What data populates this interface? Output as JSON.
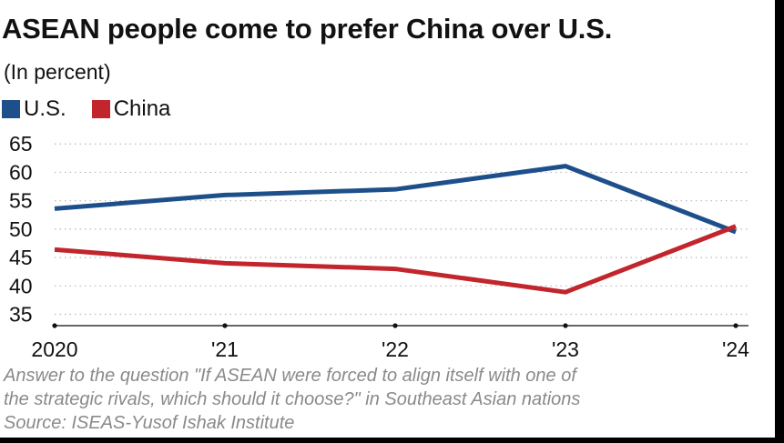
{
  "title": "ASEAN people come to prefer China over U.S.",
  "subtitle": "(In percent)",
  "footnote": {
    "line1": "Answer to the question \"If ASEAN were forced to align itself with one of",
    "line2": "the strategic rivals, which should it choose?\" in Southeast Asian nations",
    "source": "Source: ISEAS-Yusof Ishak Institute"
  },
  "colors": {
    "us": "#1d4f8a",
    "china": "#c2252c",
    "grid": "#b8b8b8",
    "axis": "#333333"
  },
  "chart_data": {
    "type": "line",
    "title": "ASEAN people come to prefer China over U.S.",
    "ylabel": "(In percent)",
    "xlabel": "",
    "categories": [
      "2020",
      "'21",
      "'22",
      "'23",
      "'24"
    ],
    "y_ticks": [
      35,
      40,
      45,
      50,
      55,
      60,
      65
    ],
    "ylim": [
      33,
      66
    ],
    "grid": true,
    "legend_position": "top-left",
    "series": [
      {
        "name": "U.S.",
        "color": "#1d4f8a",
        "values": [
          53.6,
          56.0,
          57.0,
          61.1,
          49.5
        ]
      },
      {
        "name": "China",
        "color": "#c2252c",
        "values": [
          46.4,
          44.0,
          43.0,
          38.9,
          50.5
        ]
      }
    ]
  }
}
